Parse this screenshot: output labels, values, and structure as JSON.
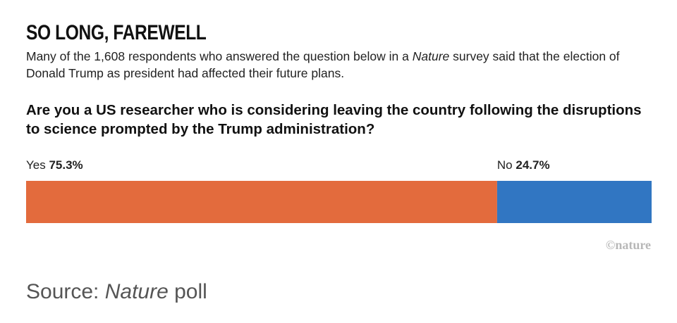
{
  "header": {
    "title": "SO LONG, FAREWELL",
    "subtitle_part1": "Many of the 1,608 respondents who answered the question below in a ",
    "subtitle_italic": "Nature",
    "subtitle_part2": " survey said that the election of Donald Trump as president had affected their future plans.",
    "question": "Are you a US researcher who is considering leaving the country following the disruptions to science prompted by the Trump administration?"
  },
  "chart_data": {
    "type": "bar",
    "orientation": "horizontal-stacked",
    "categories": [
      "Yes",
      "No"
    ],
    "values": [
      75.3,
      24.7
    ],
    "value_labels": [
      "75.3%",
      "24.7%"
    ],
    "colors": [
      "#e36b3d",
      "#3176c2"
    ]
  },
  "footer": {
    "credit": "©nature",
    "source_prefix": "Source: ",
    "source_italic": "Nature",
    "source_suffix": " poll"
  }
}
